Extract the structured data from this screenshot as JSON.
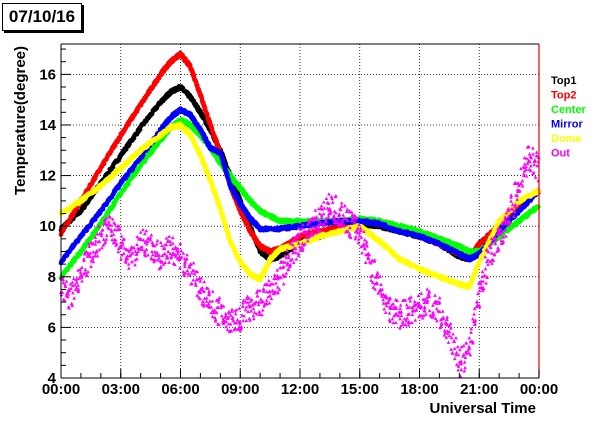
{
  "title": "07/10/16",
  "chart_data": {
    "type": "scatter",
    "title": "07/10/16",
    "xlabel": "Universal Time",
    "ylabel": "Temperature(degree)",
    "xlim": [
      0,
      24
    ],
    "ylim": [
      4,
      17.2
    ],
    "grid": true,
    "legend_position": "right",
    "x_ticks": [
      0,
      3,
      6,
      9,
      12,
      15,
      18,
      21,
      24
    ],
    "x_tick_labels": [
      "00:00",
      "03:00",
      "06:00",
      "09:00",
      "12:00",
      "15:00",
      "18:00",
      "21:00",
      "00:00"
    ],
    "y_ticks": [
      4,
      6,
      8,
      10,
      12,
      14,
      16
    ],
    "y_tick_labels": [
      "4",
      "6",
      "8",
      "10",
      "12",
      "14",
      "16"
    ],
    "series": [
      {
        "name": "Top1",
        "color": "#000000",
        "x": [
          0,
          1,
          2,
          3,
          4,
          5,
          5.5,
          6,
          6.5,
          7,
          7.5,
          8,
          8.5,
          9,
          9.5,
          10,
          10.5,
          11,
          12,
          13,
          14,
          15,
          16,
          17,
          18,
          19,
          20,
          20.5,
          21,
          22,
          23,
          24
        ],
        "y": [
          9.9,
          10.6,
          11.7,
          12.8,
          13.9,
          14.9,
          15.3,
          15.5,
          15.1,
          14.5,
          13.8,
          13.0,
          12.0,
          11.0,
          10.0,
          9.0,
          8.7,
          8.8,
          9.4,
          9.6,
          9.9,
          10.1,
          10.0,
          9.8,
          9.6,
          9.3,
          8.8,
          8.7,
          9.3,
          10.0,
          10.8,
          11.4
        ]
      },
      {
        "name": "Top2",
        "color": "#ff0000",
        "x": [
          0,
          1,
          2,
          3,
          4,
          5,
          5.5,
          6,
          6.5,
          7,
          7.5,
          8,
          8.5,
          9,
          9.5,
          10,
          10.5,
          11,
          12,
          13,
          14,
          15,
          16,
          17,
          18,
          19,
          20,
          20.5,
          21,
          22,
          23,
          24
        ],
        "y": [
          9.7,
          11.0,
          12.3,
          13.6,
          14.8,
          16.0,
          16.5,
          16.8,
          16.3,
          15.2,
          14.0,
          12.9,
          11.6,
          10.6,
          9.8,
          9.2,
          9.0,
          9.1,
          9.6,
          9.8,
          10.0,
          10.2,
          10.1,
          9.9,
          9.6,
          9.3,
          8.9,
          8.7,
          9.3,
          10.0,
          10.8,
          11.4
        ]
      },
      {
        "name": "Center",
        "color": "#00ff00",
        "x": [
          0,
          1,
          2,
          3,
          4,
          5,
          5.5,
          6,
          6.5,
          7,
          7.5,
          8,
          8.5,
          9,
          9.5,
          10,
          11,
          12,
          13,
          14,
          15,
          16,
          17,
          18,
          19,
          20,
          20.5,
          21,
          22,
          23,
          24
        ],
        "y": [
          8.0,
          9.0,
          10.1,
          11.3,
          12.4,
          13.4,
          13.9,
          14.2,
          14.0,
          13.6,
          13.1,
          12.5,
          12.0,
          11.5,
          11.0,
          10.6,
          10.2,
          10.2,
          10.2,
          10.2,
          10.3,
          10.2,
          10.0,
          9.8,
          9.5,
          9.2,
          9.0,
          9.0,
          9.6,
          10.2,
          10.8
        ]
      },
      {
        "name": "Mirror",
        "color": "#0000ff",
        "x": [
          0,
          1,
          2,
          3,
          4,
          5,
          5.5,
          6,
          6.5,
          7,
          7.5,
          8,
          8.5,
          9,
          9.5,
          10,
          11,
          12,
          13,
          14,
          15,
          16,
          17,
          18,
          19,
          20,
          20.5,
          21,
          22,
          23,
          24
        ],
        "y": [
          8.6,
          9.6,
          10.6,
          11.7,
          12.7,
          13.8,
          14.3,
          14.6,
          14.4,
          13.8,
          13.1,
          12.9,
          11.6,
          10.9,
          10.3,
          9.9,
          9.9,
          10.0,
          10.1,
          10.2,
          10.2,
          10.1,
          9.8,
          9.6,
          9.3,
          8.9,
          8.7,
          8.9,
          9.8,
          10.6,
          11.4
        ]
      },
      {
        "name": "Dome",
        "color": "#ffff00",
        "x": [
          0,
          1,
          2,
          3,
          4,
          5,
          5.5,
          6,
          6.5,
          7,
          7.5,
          8,
          8.5,
          9,
          9.5,
          10,
          10.5,
          11,
          12,
          13,
          14,
          15,
          16,
          17,
          18,
          19,
          20,
          20.5,
          21,
          22,
          23,
          24
        ],
        "y": [
          10.5,
          11.0,
          11.6,
          12.3,
          13.0,
          13.6,
          13.9,
          14.0,
          13.6,
          12.8,
          11.8,
          10.7,
          9.4,
          8.6,
          8.1,
          7.9,
          8.7,
          9.1,
          9.3,
          9.6,
          9.8,
          10.0,
          9.4,
          8.7,
          8.3,
          8.0,
          7.7,
          7.6,
          8.6,
          10.2,
          11.0,
          11.4
        ]
      },
      {
        "name": "Out",
        "color": "#ff00ff",
        "x": [
          0,
          0.5,
          1,
          1.5,
          2,
          2.5,
          3,
          3.5,
          4,
          4.5,
          5,
          5.5,
          6,
          6.5,
          7,
          7.5,
          8,
          8.5,
          9,
          9.5,
          10,
          10.5,
          11,
          11.5,
          12,
          12.5,
          13,
          13.5,
          14,
          14.5,
          15,
          15.5,
          16,
          16.5,
          17,
          17.5,
          18,
          18.5,
          19,
          19.5,
          20,
          20.5,
          21,
          21.5,
          22,
          22.5,
          23,
          23.5,
          24
        ],
        "y": [
          7.6,
          7.2,
          8.2,
          8.9,
          9.6,
          10.0,
          9.3,
          8.6,
          9.4,
          9.2,
          8.8,
          9.1,
          8.8,
          8.2,
          7.5,
          7.0,
          6.6,
          6.3,
          6.4,
          6.8,
          7.0,
          7.4,
          8.0,
          8.8,
          9.4,
          10.0,
          10.3,
          10.8,
          10.5,
          10.1,
          9.8,
          8.6,
          7.5,
          6.8,
          6.5,
          6.6,
          6.8,
          7.0,
          6.6,
          5.8,
          4.6,
          5.0,
          7.2,
          8.8,
          9.6,
          10.4,
          11.6,
          12.8,
          12.2
        ]
      }
    ]
  }
}
